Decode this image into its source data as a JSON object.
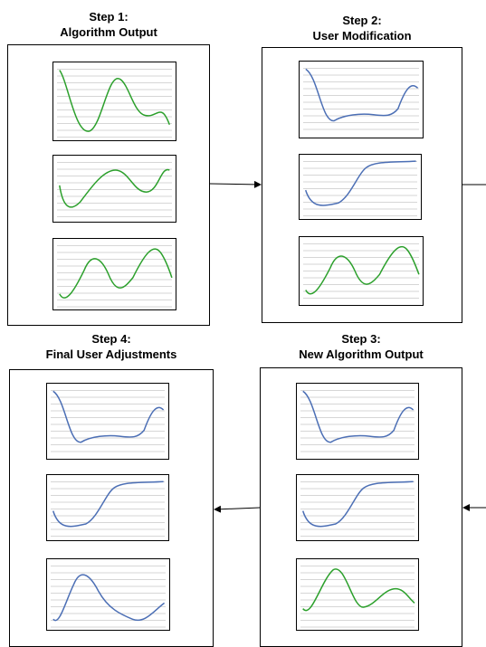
{
  "colors": {
    "green": "#2ca02c",
    "blue": "#4c6fb5",
    "grid": "#d6d6d6"
  },
  "steps": [
    {
      "id": "step1",
      "line1": "Step 1:",
      "line2": "Algorithm Output",
      "plots": [
        {
          "color": "green",
          "curve": "g1"
        },
        {
          "color": "green",
          "curve": "g2"
        },
        {
          "color": "green",
          "curve": "g3"
        }
      ]
    },
    {
      "id": "step2",
      "line1": "Step 2:",
      "line2": "User Modification",
      "plots": [
        {
          "color": "blue",
          "curve": "b1"
        },
        {
          "color": "blue",
          "curve": "b2"
        },
        {
          "color": "green",
          "curve": "g3"
        }
      ]
    },
    {
      "id": "step3",
      "line1": "Step 3:",
      "line2": "New Algorithm Output",
      "plots": [
        {
          "color": "blue",
          "curve": "b1"
        },
        {
          "color": "blue",
          "curve": "b2"
        },
        {
          "color": "green",
          "curve": "g4"
        }
      ]
    },
    {
      "id": "step4",
      "line1": "Step 4:",
      "line2": "Final User Adjustments",
      "plots": [
        {
          "color": "blue",
          "curve": "b1"
        },
        {
          "color": "blue",
          "curve": "b2"
        },
        {
          "color": "blue",
          "curve": "b3"
        }
      ]
    }
  ],
  "connectors": [
    {
      "from": "step1",
      "to": "step2",
      "direction": "right"
    },
    {
      "from": "step2",
      "to": "step3",
      "direction": "down-right-edge"
    },
    {
      "from": "step3",
      "to": "step4",
      "direction": "left"
    }
  ]
}
